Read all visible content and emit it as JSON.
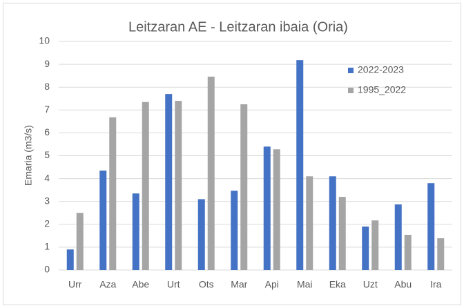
{
  "chart_data": {
    "type": "bar",
    "title": "Leitzaran AE -  Leitzaran ibaia (Oria)",
    "y_label": "Emaria (m3/s)",
    "categories": [
      "Urr",
      "Aza",
      "Abe",
      "Urt",
      "Ots",
      "Mar",
      "Api",
      "Mai",
      "Eka",
      "Uzt",
      "Abu",
      "Ira"
    ],
    "series": [
      {
        "name": "2022-2023",
        "color": "#4472c4",
        "values": [
          0.9,
          4.35,
          3.35,
          7.7,
          3.1,
          3.47,
          5.4,
          9.18,
          4.1,
          1.9,
          2.87,
          3.8
        ]
      },
      {
        "name": "1995_2022",
        "color": "#a5a5a5",
        "values": [
          2.5,
          6.68,
          7.35,
          7.4,
          8.46,
          7.25,
          5.28,
          4.1,
          3.2,
          2.17,
          1.54,
          1.39
        ]
      }
    ],
    "ylim": [
      0,
      10
    ],
    "yticks": [
      0,
      1,
      2,
      3,
      4,
      5,
      6,
      7,
      8,
      9,
      10
    ],
    "grid": true,
    "legend": "top-right"
  }
}
